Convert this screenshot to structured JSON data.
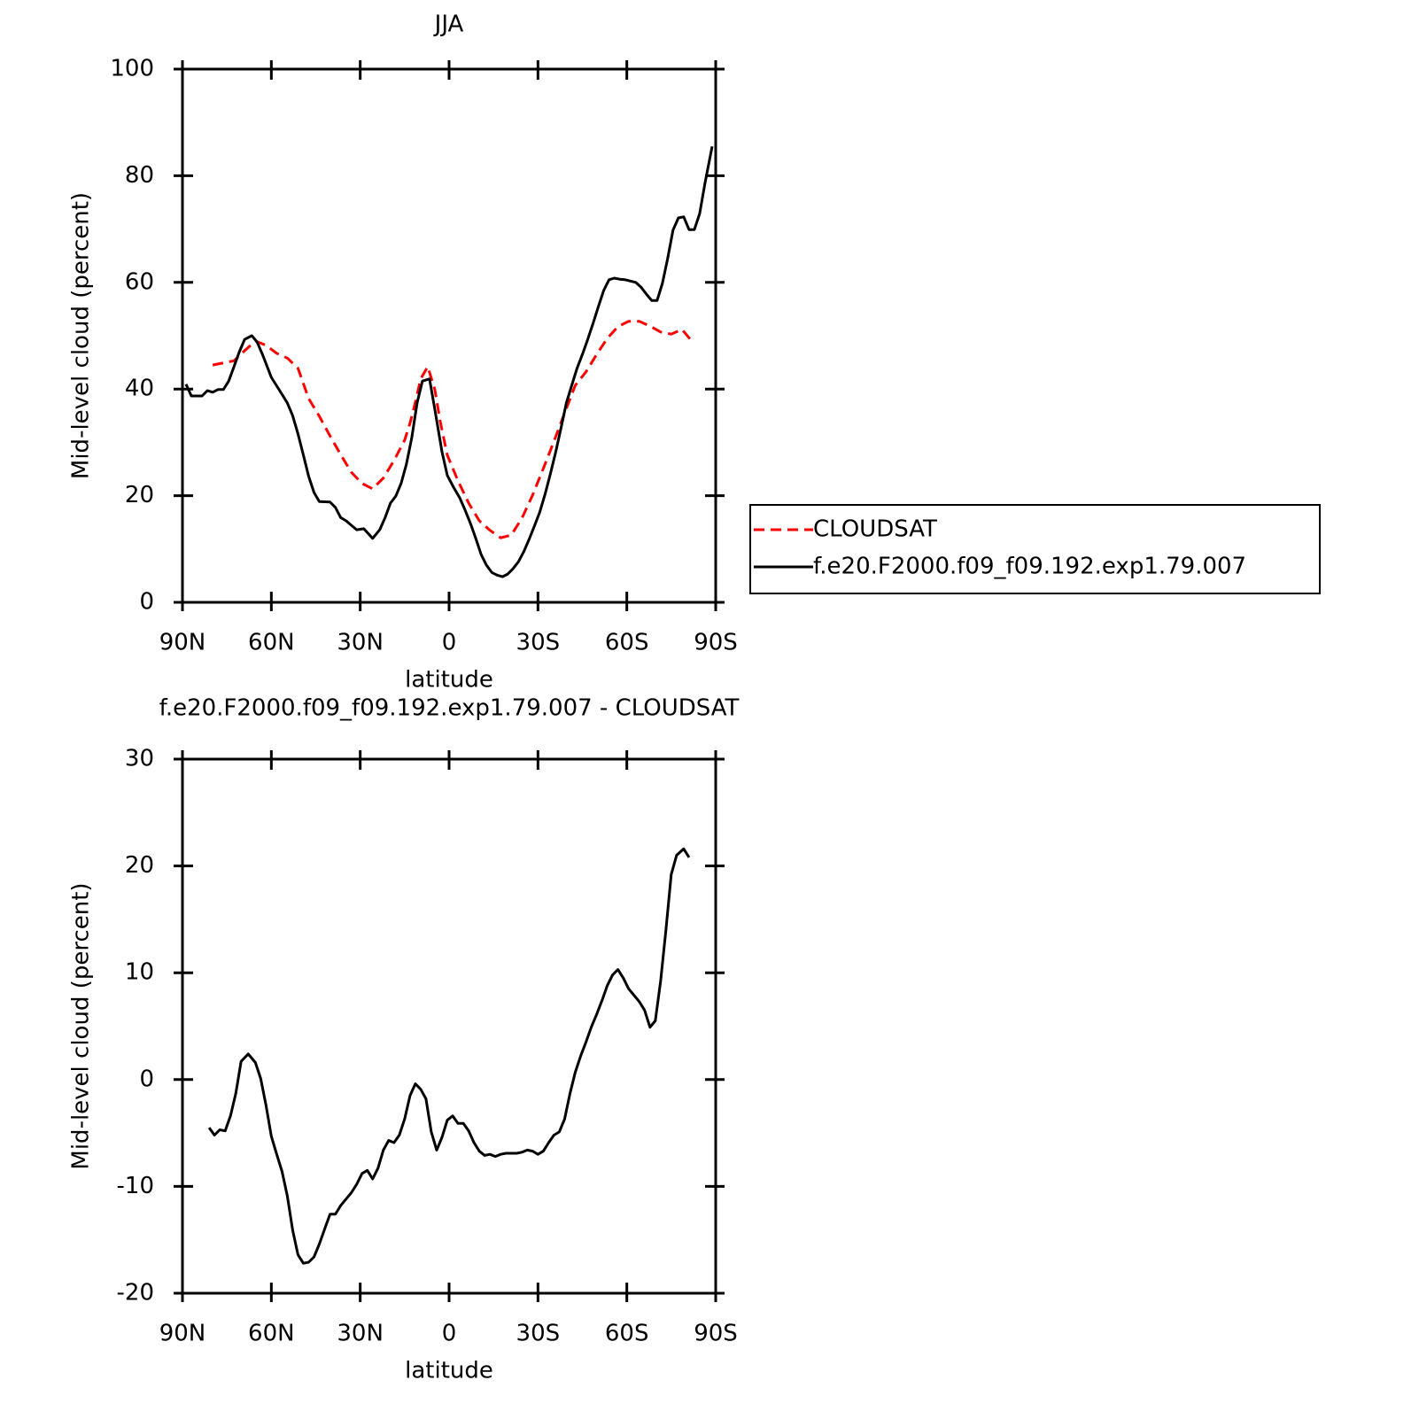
{
  "chart_data": [
    {
      "type": "line",
      "title": "JJA",
      "xlabel": "latitude",
      "ylabel": "Mid-level cloud (percent)",
      "xlim": [
        90,
        -90
      ],
      "xticks": [
        {
          "value": 90,
          "label": "90N"
        },
        {
          "value": 60,
          "label": "60N"
        },
        {
          "value": 30,
          "label": "30N"
        },
        0,
        {
          "value": -30,
          "label": "30S"
        },
        {
          "value": -60,
          "label": "60S"
        },
        {
          "value": -90,
          "label": "90S"
        }
      ],
      "ylim": [
        0,
        100
      ],
      "yticks": [
        0,
        20,
        40,
        60,
        80,
        100
      ],
      "legend": "right",
      "series": [
        {
          "name": "CLOUDSAT",
          "color": "#ff0000",
          "dash": "dashed",
          "x": [
            79.8,
            76.2,
            72.6,
            69,
            65.4,
            61.8,
            58.2,
            54.6,
            51,
            47.4,
            43.8,
            40.2,
            36.6,
            33,
            29.4,
            25.8,
            22.2,
            18.6,
            15,
            13.2,
            11.4,
            9.6,
            7.2,
            4.8,
            3,
            0.6,
            -3,
            -6.6,
            -10.2,
            -13.8,
            -17.4,
            -21,
            -24.6,
            -28.2,
            -31.8,
            -35.4,
            -39,
            -42.6,
            -46.2,
            -49.8,
            -53.4,
            -57,
            -60.6,
            -64.2,
            -67.8,
            -71.4,
            -75,
            -78.6,
            -82.2
          ],
          "values": [
            44.5,
            44.9,
            45.3,
            47.2,
            49,
            48.2,
            46.7,
            45.8,
            43.9,
            38.2,
            34.9,
            31.2,
            27.7,
            24.4,
            22.3,
            21.3,
            23.3,
            26.6,
            30.4,
            33.6,
            37.5,
            41.9,
            44.2,
            39.9,
            33.9,
            27.6,
            22.8,
            18.6,
            15.3,
            13.5,
            12.1,
            12.6,
            15.8,
            20.1,
            25.1,
            30.2,
            35.5,
            40.7,
            43.2,
            46.5,
            49.5,
            51.7,
            52.7,
            52.7,
            51.8,
            50.7,
            50.3,
            51.2,
            48.8
          ]
        },
        {
          "name": "f.e20.F2000.f09_f09.192.exp1.79.007",
          "color": "#000000",
          "dash": "solid",
          "x": [
            88.8,
            87,
            83.4,
            81.6,
            79.8,
            78,
            76.2,
            74.4,
            72.6,
            70.8,
            69,
            66.6,
            64.8,
            63,
            60,
            56.4,
            54.6,
            52.8,
            51,
            49.2,
            47.4,
            45.6,
            43.8,
            40.2,
            38.4,
            36.6,
            34.8,
            31.2,
            28.8,
            25.8,
            23.4,
            21.6,
            19.8,
            18,
            16.2,
            14.4,
            12.6,
            10.8,
            9,
            6.6,
            4.8,
            2.4,
            0.6,
            -1.8,
            -3.6,
            -5.4,
            -7.2,
            -9,
            -10.8,
            -12.6,
            -14.4,
            -16.2,
            -18,
            -19.8,
            -21.6,
            -23.4,
            -25.2,
            -27,
            -28.8,
            -30.6,
            -32.4,
            -34.2,
            -36,
            -37.8,
            -39.6,
            -41.4,
            -43.2,
            -45,
            -46.8,
            -48.6,
            -50.4,
            -52.2,
            -54,
            -55.8,
            -57.6,
            -59.4,
            -63,
            -64.8,
            -66.6,
            -68.4,
            -70.2,
            -72,
            -73.8,
            -75.6,
            -77.4,
            -79.2,
            -81,
            -82.8,
            -84.6,
            -86.4,
            -88.8
          ],
          "values": [
            40.9,
            38.7,
            38.7,
            39.7,
            39.4,
            39.9,
            39.9,
            41.5,
            44.2,
            47,
            49.3,
            50,
            48.8,
            46.5,
            42.2,
            39,
            37.4,
            35,
            31.6,
            27.6,
            23.6,
            20.6,
            18.9,
            18.8,
            17.8,
            15.9,
            15.3,
            13.6,
            13.8,
            12,
            13.6,
            15.9,
            18.6,
            19.9,
            22.3,
            25.9,
            30.9,
            37.4,
            41.5,
            41.9,
            36.2,
            28.2,
            23.8,
            21.3,
            19.6,
            17.3,
            14.8,
            12,
            9,
            7,
            5.6,
            5.1,
            4.8,
            5.3,
            6.3,
            7.6,
            9.5,
            11.8,
            14.3,
            16.9,
            20.3,
            24.1,
            28.2,
            32.7,
            37.4,
            40.7,
            43.9,
            46.5,
            49.3,
            52.3,
            55.5,
            58.5,
            60.5,
            60.8,
            60.6,
            60.5,
            60,
            59.1,
            57.8,
            56.6,
            56.6,
            59.8,
            64.5,
            69.8,
            72.1,
            72.3,
            69.9,
            69.9,
            72.9,
            78.7,
            85.5
          ]
        }
      ]
    },
    {
      "type": "line",
      "title": "f.e20.F2000.f09_f09.192.exp1.79.007 - CLOUDSAT",
      "xlabel": "latitude",
      "ylabel": "Mid-level cloud (percent)",
      "xlim": [
        90,
        -90
      ],
      "xticks": [
        {
          "value": 90,
          "label": "90N"
        },
        {
          "value": 60,
          "label": "60N"
        },
        {
          "value": 30,
          "label": "30N"
        },
        0,
        {
          "value": -30,
          "label": "30S"
        },
        {
          "value": -60,
          "label": "60S"
        },
        {
          "value": -90,
          "label": "90S"
        }
      ],
      "ylim": [
        -20,
        30
      ],
      "yticks": [
        -20,
        -10,
        0,
        10,
        20,
        30
      ],
      "series": [
        {
          "color": "#000000",
          "dash": "solid",
          "x": [
            81,
            79.2,
            77.4,
            75.6,
            73.8,
            72,
            70.2,
            67.8,
            65.4,
            63.6,
            61.8,
            60,
            58.2,
            56.4,
            54.6,
            52.8,
            51,
            49.2,
            47.4,
            45.6,
            43.8,
            42,
            40.2,
            38.4,
            36.6,
            33,
            31.2,
            29.4,
            27.6,
            25.8,
            24,
            22.2,
            20.4,
            18.6,
            16.8,
            15,
            13.2,
            11.4,
            9.6,
            7.8,
            6,
            4.2,
            2.4,
            0.6,
            -1.2,
            -3,
            -4.8,
            -6.6,
            -8.4,
            -10.2,
            -12,
            -13.8,
            -15.6,
            -17.4,
            -19.2,
            -21,
            -22.8,
            -24.6,
            -26.4,
            -28.2,
            -30,
            -31.8,
            -33.6,
            -35.4,
            -37.2,
            -39,
            -40.8,
            -42.6,
            -44.4,
            -46.2,
            -48,
            -49.8,
            -51.6,
            -53.4,
            -55.2,
            -57,
            -58.8,
            -60.6,
            -62.4,
            -64.2,
            -66,
            -67.8,
            -69.6,
            -71.4,
            -73.2,
            -75,
            -76.8,
            -79.2,
            -81
          ],
          "values": [
            -4.5,
            -5.2,
            -4.7,
            -4.8,
            -3.4,
            -1.3,
            1.7,
            2.4,
            1.6,
            0.1,
            -2.4,
            -5.3,
            -7,
            -8.6,
            -10.9,
            -14.1,
            -16.4,
            -17.2,
            -17.1,
            -16.6,
            -15.4,
            -14,
            -12.6,
            -12.6,
            -11.8,
            -10.6,
            -9.8,
            -8.8,
            -8.5,
            -9.3,
            -8.3,
            -6.6,
            -5.7,
            -5.9,
            -5.2,
            -3.7,
            -1.5,
            -0.4,
            -0.9,
            -1.8,
            -4.9,
            -6.6,
            -5.4,
            -3.8,
            -3.4,
            -4.1,
            -4.1,
            -4.8,
            -5.9,
            -6.7,
            -7.1,
            -7,
            -7.2,
            -7,
            -6.9,
            -6.9,
            -6.9,
            -6.8,
            -6.6,
            -6.7,
            -7,
            -6.7,
            -5.9,
            -5.2,
            -4.9,
            -3.7,
            -1.3,
            0.7,
            2.2,
            3.5,
            4.9,
            6.1,
            7.4,
            8.8,
            9.8,
            10.3,
            9.5,
            8.5,
            7.9,
            7.3,
            6.5,
            4.9,
            5.5,
            9.2,
            14,
            19.2,
            21,
            21.6,
            20.8
          ]
        }
      ]
    }
  ]
}
